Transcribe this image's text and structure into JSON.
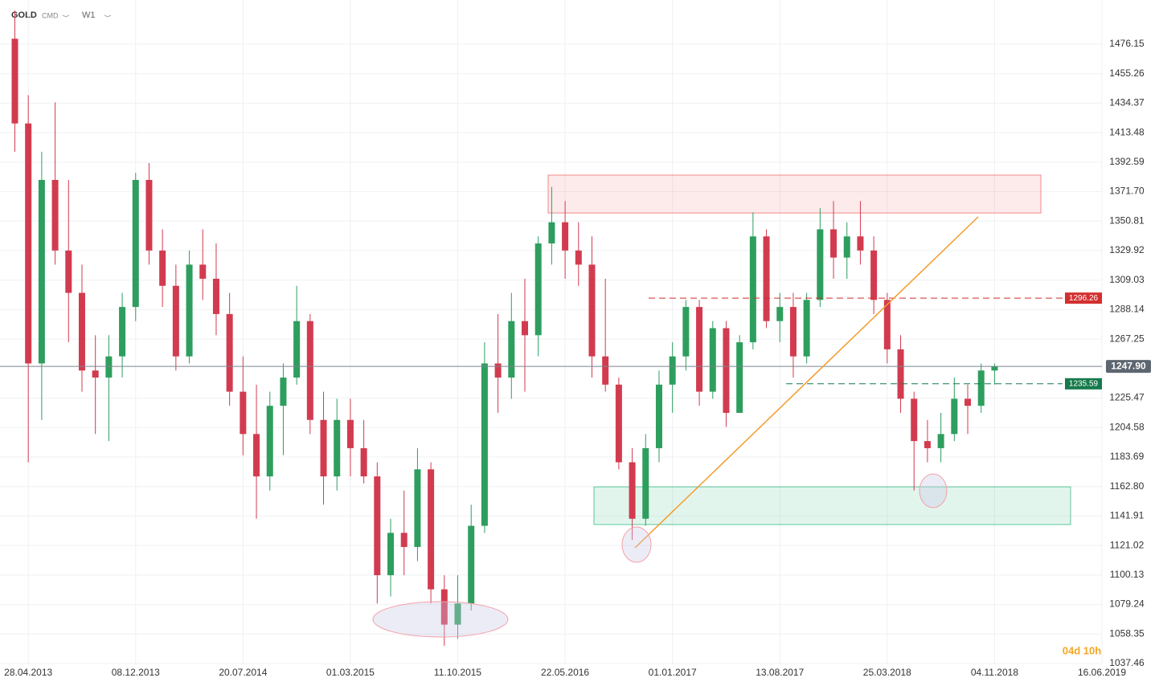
{
  "header": {
    "symbol": "GOLD",
    "market": "CMD",
    "timeframe": "W1"
  },
  "countdown": "04d 10h",
  "chart_data": {
    "type": "candlestick",
    "up_color": "#2e9e5e",
    "down_color": "#d23b4f",
    "xlim": [
      "28.02.2013",
      "16.06.2019"
    ],
    "xticks": [
      "28.04.2013",
      "08.12.2013",
      "20.07.2014",
      "01.03.2015",
      "11.10.2015",
      "22.05.2016",
      "01.01.2017",
      "13.08.2017",
      "25.03.2018",
      "04.11.2018",
      "16.06.2019"
    ],
    "ylim": [
      1026.08,
      1507.44
    ],
    "yticks": [
      1476.15,
      1455.26,
      1434.37,
      1413.48,
      1392.59,
      {
        "value": 1371.7,
        "label": "1371.70"
      },
      1350.81,
      1329.92,
      1309.03,
      1288.14,
      1267.25,
      1225.47,
      1204.58,
      1183.69,
      {
        "value": 1162.8,
        "label": "1162.80"
      },
      1141.91,
      1121.02,
      1100.13,
      1079.24,
      1058.35,
      1037.46
    ],
    "grid": true,
    "x": [
      "31.03.2013",
      "28.04.2013",
      "26.05.2013",
      "23.06.2013",
      "21.07.2013",
      "18.08.2013",
      "15.09.2013",
      "13.10.2013",
      "10.11.2013",
      "08.12.2013",
      "05.01.2014",
      "02.02.2014",
      "02.03.2014",
      "30.03.2014",
      "27.04.2014",
      "25.05.2014",
      "22.06.2014",
      "20.07.2014",
      "17.08.2014",
      "14.09.2014",
      "12.10.2014",
      "09.11.2014",
      "07.12.2014",
      "04.01.2015",
      "01.02.2015",
      "01.03.2015",
      "29.03.2015",
      "26.04.2015",
      "24.05.2015",
      "21.06.2015",
      "19.07.2015",
      "16.08.2015",
      "13.09.2015",
      "11.10.2015",
      "08.11.2015",
      "06.12.2015",
      "03.01.2016",
      "31.01.2016",
      "28.02.2016",
      "27.03.2016",
      "24.04.2016",
      "22.05.2016",
      "19.06.2016",
      "17.07.2016",
      "14.08.2016",
      "11.09.2016",
      "09.10.2016",
      "06.11.2016",
      "04.12.2016",
      "01.01.2017",
      "29.01.2017",
      "26.02.2017",
      "26.03.2017",
      "23.04.2017",
      "21.05.2017",
      "18.06.2017",
      "16.07.2017",
      "13.08.2017",
      "10.09.2017",
      "08.10.2017",
      "05.11.2017",
      "03.12.2017",
      "31.12.2017",
      "28.01.2018",
      "25.02.2018",
      "25.03.2018",
      "22.04.2018",
      "20.05.2018",
      "17.06.2018",
      "15.07.2018",
      "12.08.2018",
      "09.09.2018",
      "07.10.2018",
      "04.11.2018"
    ],
    "open": [
      1480,
      1420,
      1250,
      1380,
      1330,
      1300,
      1245,
      1240,
      1255,
      1290,
      1380,
      1330,
      1305,
      1255,
      1320,
      1310,
      1285,
      1230,
      1200,
      1170,
      1220,
      1240,
      1280,
      1210,
      1170,
      1210,
      1190,
      1170,
      1100,
      1130,
      1120,
      1175,
      1090,
      1065,
      1080,
      1135,
      1250,
      1240,
      1280,
      1270,
      1335,
      1350,
      1330,
      1320,
      1255,
      1235,
      1180,
      1140,
      1190,
      1235,
      1255,
      1290,
      1230,
      1275,
      1215,
      1265,
      1340,
      1280,
      1290,
      1255,
      1295,
      1345,
      1325,
      1340,
      1330,
      1295,
      1260,
      1225,
      1195,
      1190,
      1200,
      1225,
      1220,
      1245
    ],
    "high": [
      1500,
      1440,
      1400,
      1435,
      1380,
      1320,
      1270,
      1270,
      1300,
      1385,
      1392,
      1345,
      1320,
      1330,
      1345,
      1335,
      1300,
      1255,
      1235,
      1230,
      1250,
      1305,
      1285,
      1230,
      1225,
      1225,
      1210,
      1180,
      1140,
      1160,
      1190,
      1180,
      1100,
      1100,
      1150,
      1265,
      1285,
      1300,
      1310,
      1340,
      1375,
      1365,
      1350,
      1340,
      1310,
      1240,
      1190,
      1200,
      1245,
      1265,
      1295,
      1295,
      1280,
      1280,
      1270,
      1357,
      1345,
      1300,
      1300,
      1300,
      1360,
      1365,
      1350,
      1365,
      1340,
      1300,
      1270,
      1230,
      1210,
      1215,
      1240,
      1235,
      1250,
      1250
    ],
    "low": [
      1400,
      1180,
      1210,
      1320,
      1265,
      1230,
      1200,
      1195,
      1240,
      1280,
      1320,
      1290,
      1245,
      1250,
      1295,
      1270,
      1220,
      1185,
      1140,
      1160,
      1185,
      1235,
      1200,
      1150,
      1160,
      1170,
      1165,
      1080,
      1085,
      1100,
      1110,
      1080,
      1050,
      1055,
      1075,
      1130,
      1215,
      1225,
      1230,
      1255,
      1320,
      1310,
      1305,
      1240,
      1230,
      1175,
      1125,
      1135,
      1180,
      1215,
      1245,
      1220,
      1225,
      1205,
      1215,
      1260,
      1275,
      1265,
      1240,
      1250,
      1290,
      1310,
      1310,
      1320,
      1285,
      1250,
      1215,
      1160,
      1180,
      1180,
      1195,
      1200,
      1215,
      1235
    ],
    "close": [
      1420,
      1250,
      1380,
      1330,
      1300,
      1245,
      1240,
      1255,
      1290,
      1380,
      1330,
      1305,
      1255,
      1320,
      1310,
      1285,
      1230,
      1200,
      1170,
      1220,
      1240,
      1280,
      1210,
      1170,
      1210,
      1190,
      1170,
      1100,
      1130,
      1120,
      1175,
      1090,
      1065,
      1080,
      1135,
      1250,
      1240,
      1280,
      1270,
      1335,
      1350,
      1330,
      1320,
      1255,
      1235,
      1180,
      1140,
      1190,
      1235,
      1255,
      1290,
      1230,
      1275,
      1215,
      1265,
      1340,
      1280,
      1290,
      1255,
      1295,
      1345,
      1325,
      1340,
      1330,
      1295,
      1260,
      1225,
      1195,
      1190,
      1200,
      1225,
      1220,
      1245,
      1247.9
    ],
    "zones": [
      {
        "top": 1383.4,
        "bottom": 1356.6,
        "color": "#f28b8b"
      },
      {
        "top": 1162.6,
        "bottom": 1135.9,
        "color": "#5cc79a"
      }
    ],
    "price_lines": [
      {
        "value": 1296.26,
        "color": "#d32f2f"
      },
      {
        "value": 1235.59,
        "color": "#167a4c"
      }
    ],
    "last_price": {
      "value": 1247.9,
      "label": "1247.90"
    }
  }
}
